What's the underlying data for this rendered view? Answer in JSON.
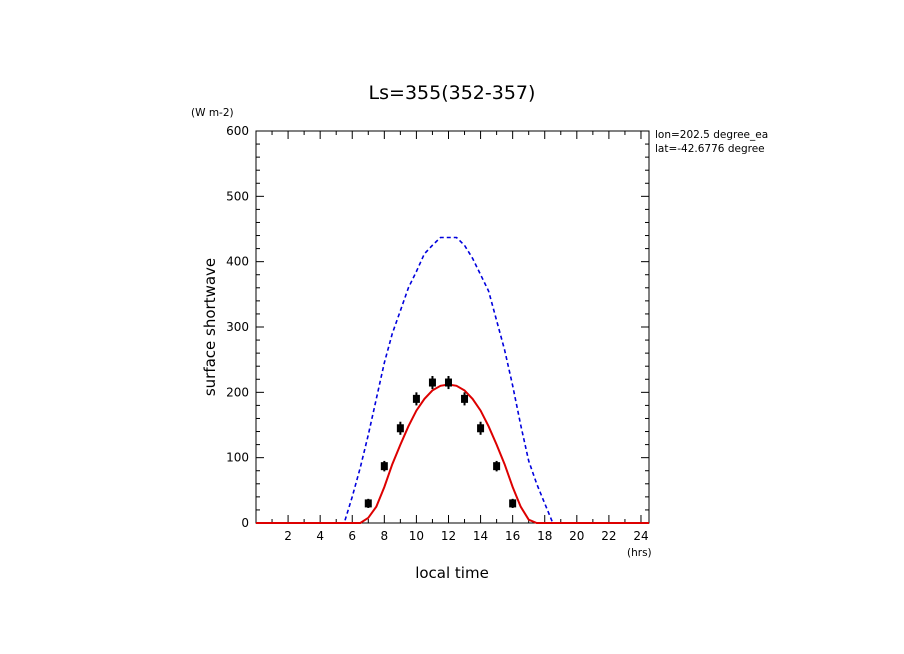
{
  "chart_data": {
    "type": "line",
    "title": "Ls=355(352-357)",
    "xlabel": "local time",
    "ylabel": "surface shortwave",
    "x_unit": "(hrs)",
    "y_unit": "(W m-2)",
    "annotations": [
      "lon=202.5 degree_ea",
      "lat=-42.6776 degree"
    ],
    "xlim": [
      0,
      24.5
    ],
    "ylim": [
      0,
      600
    ],
    "x_ticks": [
      2,
      4,
      6,
      8,
      10,
      12,
      14,
      16,
      18,
      20,
      22,
      24
    ],
    "x_tick_labels": [
      "2",
      "4",
      "6",
      "8",
      "10",
      "12",
      "14",
      "16",
      "18",
      "20",
      "22",
      "24"
    ],
    "y_ticks": [
      0,
      100,
      200,
      300,
      400,
      500,
      600
    ],
    "y_tick_labels": [
      "0",
      "100",
      "200",
      "300",
      "400",
      "500",
      "600"
    ],
    "grid": false,
    "series": [
      {
        "style": "dashed",
        "color": "#0000dd",
        "x": [
          0,
          5.5,
          6,
          6.5,
          7,
          7.5,
          8,
          8.5,
          9,
          9.5,
          10,
          10.5,
          11,
          11.5,
          12,
          12.5,
          13,
          13.5,
          14,
          14.5,
          15,
          15.5,
          16,
          16.5,
          17,
          17.5,
          18,
          18.5,
          24.5
        ],
        "y": [
          0,
          0,
          40,
          85,
          135,
          190,
          245,
          290,
          325,
          360,
          385,
          412,
          425,
          437,
          437,
          437,
          425,
          405,
          380,
          355,
          310,
          265,
          210,
          150,
          95,
          60,
          30,
          0,
          0
        ]
      },
      {
        "style": "solid",
        "color": "#dd0000",
        "x": [
          0,
          6.5,
          7,
          7.5,
          8,
          8.5,
          9,
          9.5,
          10,
          10.5,
          11,
          11.5,
          12,
          12.5,
          13,
          13.5,
          14,
          14.5,
          15,
          15.5,
          16,
          16.5,
          17,
          17.5,
          24.5
        ],
        "y": [
          0,
          0,
          8,
          25,
          55,
          90,
          120,
          148,
          172,
          190,
          203,
          210,
          212,
          210,
          203,
          190,
          172,
          148,
          120,
          90,
          55,
          25,
          5,
          0,
          0
        ]
      },
      {
        "style": "markers",
        "color": "#000000",
        "x": [
          7,
          8,
          9,
          10,
          11,
          12,
          13,
          14,
          15,
          16
        ],
        "y": [
          30,
          87,
          145,
          190,
          215,
          215,
          190,
          145,
          87,
          30
        ],
        "error": [
          7,
          8,
          10,
          10,
          10,
          10,
          10,
          10,
          8,
          7
        ]
      }
    ]
  }
}
